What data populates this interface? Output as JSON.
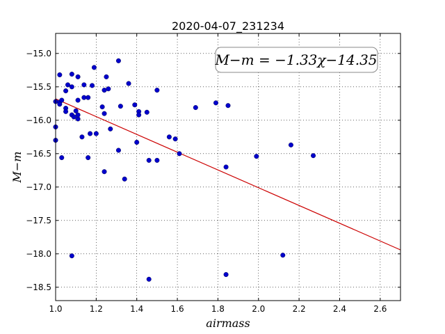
{
  "chart_data": {
    "type": "scatter",
    "title": "2020-04-07_231234",
    "xlabel": "airmass",
    "ylabel": "M−m",
    "xlim": [
      1.0,
      2.7
    ],
    "ylim": [
      -18.7,
      -14.7
    ],
    "y_inverted": true,
    "grid": true,
    "grid_style": "dotted",
    "x_ticks": [
      1.0,
      1.2,
      1.4,
      1.6,
      1.8,
      2.0,
      2.2,
      2.4,
      2.6
    ],
    "x_tick_labels": [
      "1.0",
      "1.2",
      "1.4",
      "1.6",
      "1.8",
      "2.0",
      "2.2",
      "2.4",
      "2.6"
    ],
    "y_ticks": [
      -15.0,
      -15.5,
      -16.0,
      -16.5,
      -17.0,
      -17.5,
      -18.0,
      -18.5
    ],
    "y_tick_labels": [
      "−15.0",
      "−15.5",
      "−16.0",
      "−16.5",
      "−17.0",
      "−17.5",
      "−18.0",
      "−18.5"
    ],
    "annotation": "M−m = −1.33χ−14.35",
    "fit": {
      "slope": -1.33,
      "intercept": -14.35,
      "color": "#cc0000"
    },
    "point_color": "#0000cc",
    "points": [
      [
        1.0,
        -15.72
      ],
      [
        1.0,
        -16.1
      ],
      [
        1.0,
        -16.3
      ],
      [
        1.02,
        -15.32
      ],
      [
        1.02,
        -15.73
      ],
      [
        1.03,
        -15.7
      ],
      [
        1.03,
        -16.56
      ],
      [
        1.02,
        -15.76
      ],
      [
        1.05,
        -15.82
      ],
      [
        1.05,
        -15.87
      ],
      [
        1.05,
        -15.56
      ],
      [
        1.06,
        -15.47
      ],
      [
        1.08,
        -15.31
      ],
      [
        1.08,
        -15.5
      ],
      [
        1.08,
        -15.92
      ],
      [
        1.09,
        -15.95
      ],
      [
        1.1,
        -15.86
      ],
      [
        1.11,
        -15.7
      ],
      [
        1.11,
        -15.35
      ],
      [
        1.11,
        -15.98
      ],
      [
        1.11,
        -15.92
      ],
      [
        1.13,
        -16.25
      ],
      [
        1.14,
        -15.47
      ],
      [
        1.14,
        -15.66
      ],
      [
        1.16,
        -15.66
      ],
      [
        1.16,
        -16.56
      ],
      [
        1.17,
        -16.2
      ],
      [
        1.18,
        -15.48
      ],
      [
        1.19,
        -15.21
      ],
      [
        1.2,
        -16.2
      ],
      [
        1.23,
        -15.8
      ],
      [
        1.24,
        -15.9
      ],
      [
        1.24,
        -16.77
      ],
      [
        1.24,
        -15.55
      ],
      [
        1.25,
        -15.35
      ],
      [
        1.26,
        -15.53
      ],
      [
        1.27,
        -16.13
      ],
      [
        1.31,
        -15.11
      ],
      [
        1.31,
        -16.45
      ],
      [
        1.32,
        -15.79
      ],
      [
        1.34,
        -16.88
      ],
      [
        1.36,
        -15.45
      ],
      [
        1.39,
        -15.77
      ],
      [
        1.4,
        -16.33
      ],
      [
        1.41,
        -15.87
      ],
      [
        1.41,
        -15.92
      ],
      [
        1.45,
        -15.88
      ],
      [
        1.46,
        -16.6
      ],
      [
        1.5,
        -16.6
      ],
      [
        1.5,
        -15.55
      ],
      [
        1.56,
        -16.25
      ],
      [
        1.59,
        -16.28
      ],
      [
        1.61,
        -16.5
      ],
      [
        1.69,
        -15.81
      ],
      [
        1.79,
        -15.74
      ],
      [
        1.84,
        -16.7
      ],
      [
        1.85,
        -15.78
      ],
      [
        1.99,
        -16.54
      ],
      [
        2.16,
        -16.37
      ],
      [
        2.27,
        -16.53
      ],
      [
        1.08,
        -18.03
      ],
      [
        1.46,
        -18.38
      ],
      [
        1.84,
        -18.31
      ],
      [
        2.12,
        -18.02
      ]
    ]
  }
}
